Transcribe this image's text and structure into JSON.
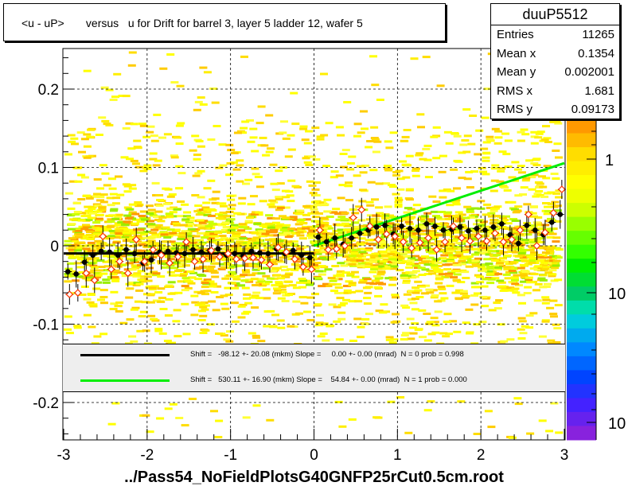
{
  "chart_data": {
    "type": "scatter",
    "title": "<u - uP>       versus   u for Drift for barrel 3, layer 5 ladder 12, wafer 5",
    "xlabel": "",
    "ylabel": "",
    "xlim": [
      -3,
      3
    ],
    "ylim": [
      -0.25,
      0.25
    ],
    "x_ticks": [
      "-3",
      "-2",
      "-1",
      "0",
      "1",
      "2",
      "3"
    ],
    "y_ticks": [
      "0.2",
      "0.1",
      "0",
      "-0.1",
      "-0.2"
    ],
    "colorbar_ticks": [
      "1",
      "10",
      "10"
    ],
    "grid": true,
    "colors": {
      "black_profile": "#000000",
      "red_profile": "#ff3300",
      "green_fit": "#00ee00",
      "black_fit": "#000000"
    },
    "series": [
      {
        "marker": "black-dot",
        "x": [
          -2.95,
          -2.85,
          -2.75,
          -2.65,
          -2.55,
          -2.45,
          -2.35,
          -2.25,
          -2.15,
          -2.05,
          -1.95,
          -1.85,
          -1.75,
          -1.65,
          -1.55,
          -1.45,
          -1.35,
          -1.25,
          -1.15,
          -1.05,
          -0.95,
          -0.85,
          -0.75,
          -0.65,
          -0.55,
          -0.45,
          -0.35,
          -0.25,
          -0.15,
          -0.05,
          0.05,
          0.15,
          0.25,
          0.35,
          0.45,
          0.55,
          0.65,
          0.75,
          0.85,
          0.95,
          1.05,
          1.15,
          1.25,
          1.35,
          1.45,
          1.55,
          1.65,
          1.75,
          1.85,
          1.95,
          2.05,
          2.15,
          2.25,
          2.35,
          2.45,
          2.55,
          2.65,
          2.75,
          2.85,
          2.95
        ],
        "y": [
          -0.033,
          -0.036,
          -0.021,
          -0.012,
          -0.007,
          -0.008,
          -0.012,
          -0.005,
          -0.01,
          -0.022,
          -0.018,
          -0.008,
          -0.007,
          -0.009,
          -0.01,
          -0.005,
          -0.008,
          -0.006,
          -0.004,
          -0.012,
          -0.01,
          -0.013,
          -0.007,
          -0.009,
          -0.01,
          -0.004,
          -0.01,
          -0.006,
          -0.012,
          -0.015,
          0.011,
          0.005,
          0.01,
          0.002,
          0.01,
          0.016,
          0.02,
          0.024,
          0.026,
          0.015,
          0.025,
          0.022,
          0.02,
          0.028,
          0.025,
          0.02,
          0.021,
          0.024,
          0.019,
          0.022,
          0.02,
          0.024,
          0.028,
          0.014,
          0.003,
          0.026,
          0.02,
          0.014,
          0.03,
          0.04
        ]
      },
      {
        "marker": "red-open-diamond",
        "x": [
          -2.95,
          -2.85,
          -2.75,
          -2.65,
          -2.55,
          -2.45,
          -2.35,
          -2.25,
          -2.15,
          -2.05,
          -1.95,
          -1.85,
          -1.75,
          -1.65,
          -1.55,
          -1.45,
          -1.35,
          -1.25,
          -1.15,
          -1.05,
          -0.95,
          -0.85,
          -0.75,
          -0.65,
          -0.55,
          -0.45,
          -0.35,
          -0.25,
          -0.15,
          -0.05,
          0.05,
          0.15,
          0.25,
          0.35,
          0.45,
          0.55,
          0.65,
          0.75,
          0.85,
          0.95,
          1.05,
          1.15,
          1.25,
          1.35,
          1.45,
          1.55,
          1.65,
          1.75,
          1.85,
          1.95,
          2.05,
          2.15,
          2.25,
          2.35,
          2.45,
          2.55,
          2.65,
          2.75,
          2.85,
          2.95
        ],
        "y": [
          -0.062,
          -0.06,
          -0.035,
          -0.044,
          0.012,
          -0.03,
          -0.02,
          -0.035,
          0.008,
          -0.02,
          -0.005,
          -0.012,
          -0.022,
          -0.014,
          0.005,
          -0.02,
          -0.017,
          -0.006,
          -0.014,
          -0.01,
          -0.017,
          -0.016,
          -0.015,
          -0.018,
          -0.024,
          -0.002,
          -0.008,
          -0.017,
          -0.027,
          -0.03,
          0.02,
          -0.005,
          -0.004,
          0.0,
          0.036,
          0.046,
          0.025,
          0.008,
          0.015,
          0.012,
          0.005,
          -0.003,
          0.004,
          0.01,
          -0.005,
          0.005,
          0.025,
          0.01,
          0.006,
          0.012,
          0.006,
          0.016,
          0.005,
          0.008,
          0.02,
          0.04,
          0.0,
          0.017,
          0.042,
          0.072
        ]
      }
    ],
    "fits": [
      {
        "label": "Shift =   -98.12 +- 20.08 (mkm) Slope =     0.00 +- 0.00 (mrad)  N = 0 prob = 0.998",
        "x": [
          -3,
          0
        ],
        "y": [
          -0.0098,
          -0.0098
        ]
      },
      {
        "label": "Shift =   530.11 +- 16.90 (mkm) Slope =    54.84 +- 0.00 (mrad)  N = 1 prob = 0.000",
        "x": [
          0,
          3
        ],
        "y": [
          0.0,
          0.1055
        ]
      }
    ]
  },
  "stats": {
    "name": "duuP5512",
    "rows": [
      {
        "k": "Entries",
        "v": "11265"
      },
      {
        "k": "Mean x",
        "v": "0.1354"
      },
      {
        "k": "Mean y",
        "v": "0.002001"
      },
      {
        "k": "RMS x",
        "v": "1.681"
      },
      {
        "k": "RMS y",
        "v": "0.09173"
      }
    ]
  },
  "footer": "../Pass54_NoFieldPlotsG40GNFP25rCut0.5cm.root"
}
